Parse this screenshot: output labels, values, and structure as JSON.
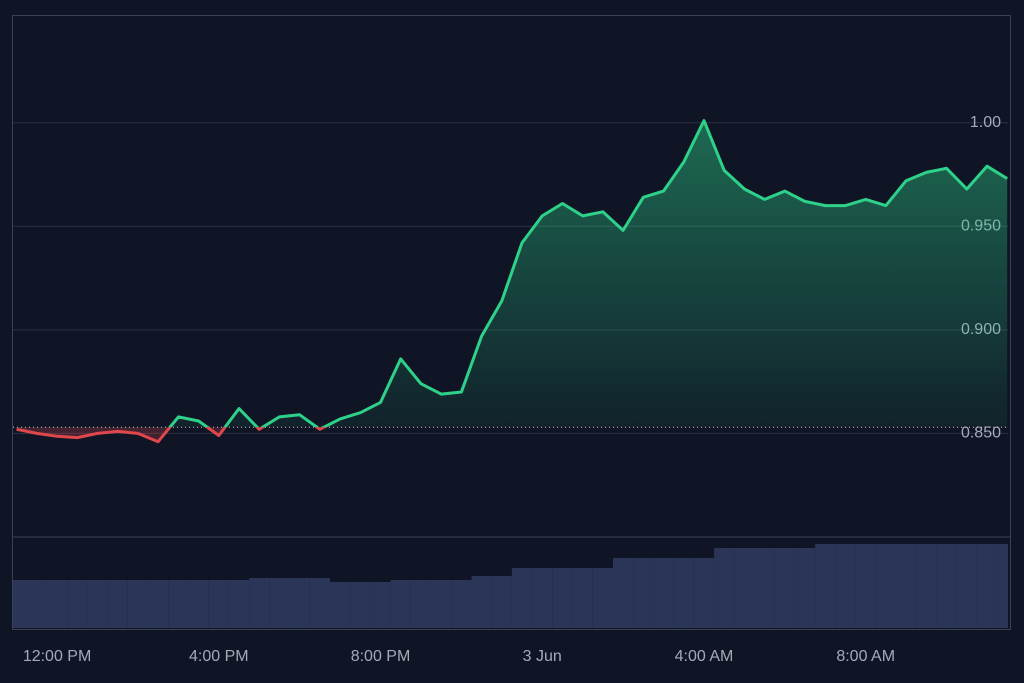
{
  "chart_data": {
    "type": "line",
    "x": [
      -1,
      -0.5,
      0,
      0.5,
      1,
      1.5,
      2,
      2.5,
      3,
      3.5,
      4,
      4.5,
      5,
      5.5,
      6,
      6.5,
      7,
      7.5,
      8,
      8.5,
      9,
      9.5,
      10,
      10.5,
      11,
      11.5,
      12,
      12.5,
      13,
      13.5,
      14,
      14.5,
      15,
      15.5,
      16,
      16.5,
      17,
      17.5,
      18,
      18.5,
      19,
      19.5,
      20,
      20.5,
      21,
      21.5,
      22,
      22.5,
      23,
      23.5
    ],
    "values": [
      0.852,
      0.85,
      0.8486,
      0.848,
      0.85,
      0.851,
      0.85,
      0.846,
      0.858,
      0.856,
      0.849,
      0.862,
      0.852,
      0.858,
      0.859,
      0.852,
      0.857,
      0.86,
      0.865,
      0.886,
      0.874,
      0.869,
      0.87,
      0.897,
      0.914,
      0.942,
      0.955,
      0.961,
      0.955,
      0.957,
      0.948,
      0.964,
      0.967,
      0.981,
      1.001,
      0.977,
      0.968,
      0.963,
      0.967,
      0.962,
      0.96,
      0.96,
      0.963,
      0.96,
      0.972,
      0.976,
      0.978,
      0.968,
      0.979,
      0.973
    ],
    "volume": [
      48,
      48,
      48,
      48,
      48,
      48,
      48,
      48,
      48,
      48,
      48,
      48,
      50,
      50,
      50,
      50,
      46,
      46,
      46,
      48,
      48,
      48,
      48,
      52,
      52,
      60,
      60,
      60,
      60,
      60,
      70,
      70,
      70,
      70,
      70,
      80,
      80,
      80,
      80,
      80,
      84,
      84,
      84,
      84,
      84,
      84,
      84,
      84,
      84,
      84
    ],
    "baseline": 0.853,
    "color_above": "#2ed18a",
    "color_below": "#e0474c",
    "volume_color": "#2a3558",
    "xlim": [
      -1.09,
      23.52
    ],
    "xticks": [
      {
        "value": 0,
        "label": "12:00 PM"
      },
      {
        "value": 4,
        "label": "4:00 PM"
      },
      {
        "value": 8,
        "label": "8:00 PM"
      },
      {
        "value": 12,
        "label": "3 Jun"
      },
      {
        "value": 16,
        "label": "4:00 AM"
      },
      {
        "value": 20,
        "label": "8:00 AM"
      }
    ],
    "ylim": [
      0.8,
      1.052
    ],
    "yticks": [
      {
        "value": 0.85,
        "label": "0.850"
      },
      {
        "value": 0.9,
        "label": "0.900"
      },
      {
        "value": 0.95,
        "label": "0.950"
      },
      {
        "value": 1,
        "label": "1.00"
      }
    ],
    "grid": true
  }
}
